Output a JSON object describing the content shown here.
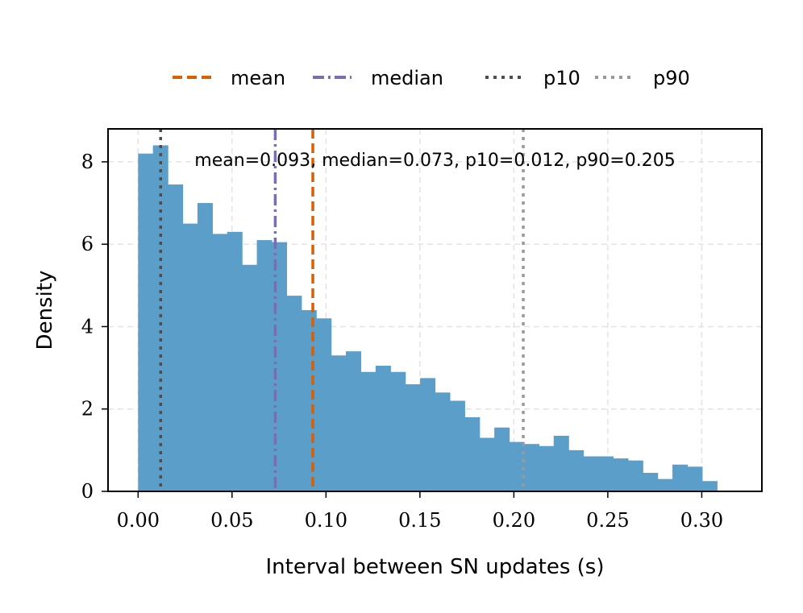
{
  "chart_data": {
    "type": "bar",
    "title": "",
    "xlabel": "Interval between SN updates (s)",
    "ylabel": "Density",
    "xlim": [
      -0.016,
      0.332
    ],
    "ylim": [
      0,
      8.8
    ],
    "xticks": [
      0.0,
      0.05,
      0.1,
      0.15,
      0.2,
      0.25,
      0.3
    ],
    "xtick_labels": [
      "0.00",
      "0.05",
      "0.10",
      "0.15",
      "0.20",
      "0.25",
      "0.30"
    ],
    "yticks": [
      0,
      2,
      4,
      6,
      8
    ],
    "ytick_labels": [
      "0",
      "2",
      "4",
      "6",
      "8"
    ],
    "grid": true,
    "legend_position": "top-center",
    "bar_color": "#5b9ec9",
    "bin_width": 0.0079,
    "bin_start": 0.0,
    "values": [
      8.2,
      8.4,
      7.45,
      6.5,
      7.0,
      6.25,
      6.3,
      5.5,
      6.1,
      6.05,
      4.75,
      4.4,
      4.2,
      3.3,
      3.4,
      2.9,
      3.05,
      2.9,
      2.6,
      2.75,
      2.4,
      2.2,
      1.8,
      1.3,
      1.55,
      1.2,
      1.15,
      1.1,
      1.35,
      1.0,
      0.85,
      0.85,
      0.8,
      0.75,
      0.45,
      0.3,
      0.65,
      0.6,
      0.25
    ],
    "reference_lines": [
      {
        "name": "mean",
        "value": 0.093,
        "color": "#d95f02",
        "style": "dashed"
      },
      {
        "name": "median",
        "value": 0.073,
        "color": "#7570b3",
        "style": "dashdot"
      },
      {
        "name": "p10",
        "value": 0.012,
        "color": "#4d4d4d",
        "style": "dotted"
      },
      {
        "name": "p90",
        "value": 0.205,
        "color": "#999999",
        "style": "dotted"
      }
    ],
    "annotation": "mean=0.093, median=0.073, p10=0.012, p90=0.205"
  }
}
